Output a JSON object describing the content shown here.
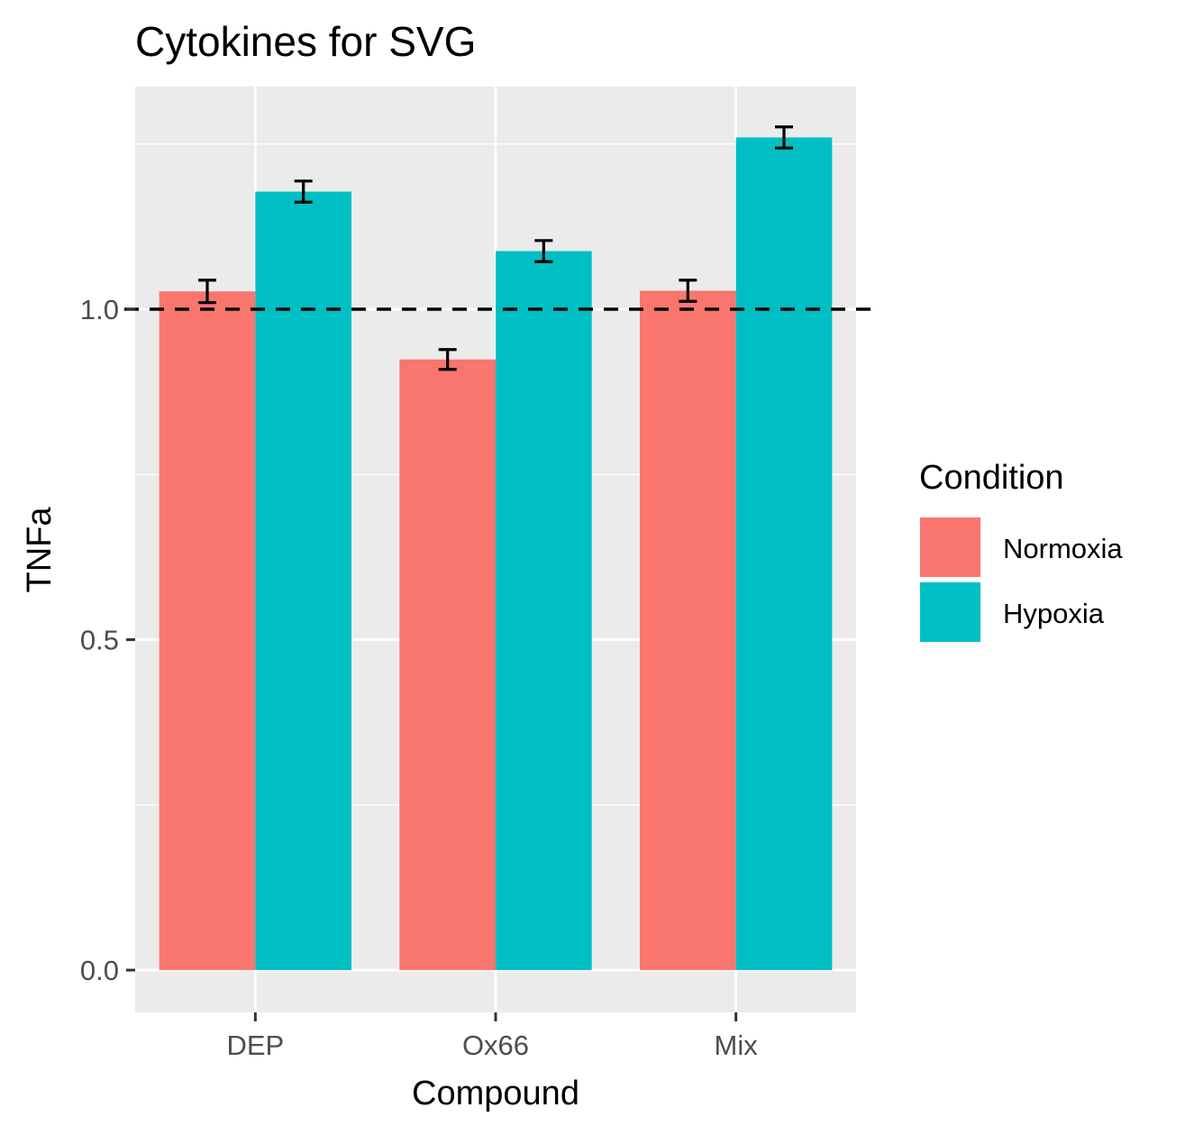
{
  "chart_data": {
    "type": "bar",
    "title": "Cytokines for SVG",
    "xlabel": "Compound",
    "ylabel": "TNFa",
    "categories": [
      "DEP",
      "Ox66",
      "Mix"
    ],
    "series": [
      {
        "name": "Normoxia",
        "color": "#F8766D",
        "values": [
          1.027,
          0.924,
          1.028
        ],
        "error": [
          0.017,
          0.015,
          0.016
        ]
      },
      {
        "name": "Hypoxia",
        "color": "#00BFC4",
        "values": [
          1.178,
          1.088,
          1.26
        ],
        "error": [
          0.016,
          0.016,
          0.016
        ]
      }
    ],
    "ylim": [
      -0.064,
      1.337
    ],
    "yticks": [
      0.0,
      0.5,
      1.0
    ],
    "yticklabels": [
      "0.0",
      "0.5",
      "1.0"
    ],
    "reference_line": {
      "y": 1.0,
      "style": "dashed"
    },
    "legend": {
      "title": "Condition",
      "position": "right"
    },
    "grid": true,
    "panel_background": "#EBEBEB"
  }
}
